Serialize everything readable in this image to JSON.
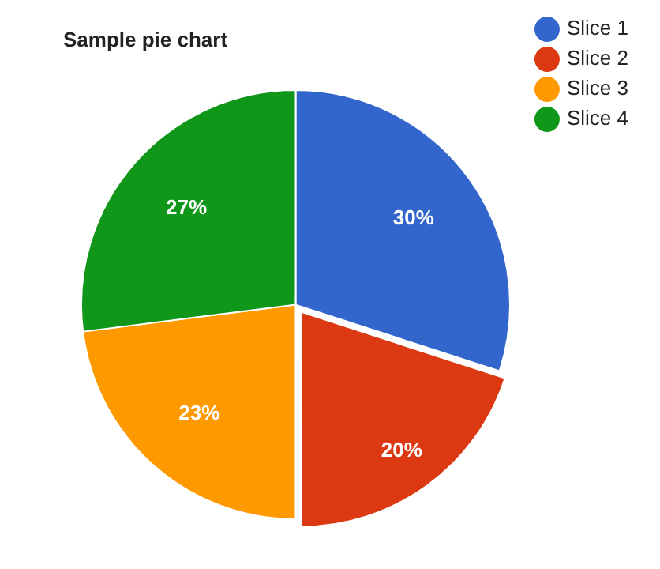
{
  "chart_data": {
    "type": "pie",
    "title": "Sample pie chart",
    "categories": [
      "Slice 1",
      "Slice 2",
      "Slice 3",
      "Slice 4"
    ],
    "values": [
      30,
      20,
      23,
      27
    ],
    "colors": [
      "#3366cc",
      "#dc3912",
      "#ff9900",
      "#109618"
    ],
    "value_labels": [
      "30%",
      "20%",
      "23%",
      "27%"
    ],
    "legend": "top right"
  }
}
